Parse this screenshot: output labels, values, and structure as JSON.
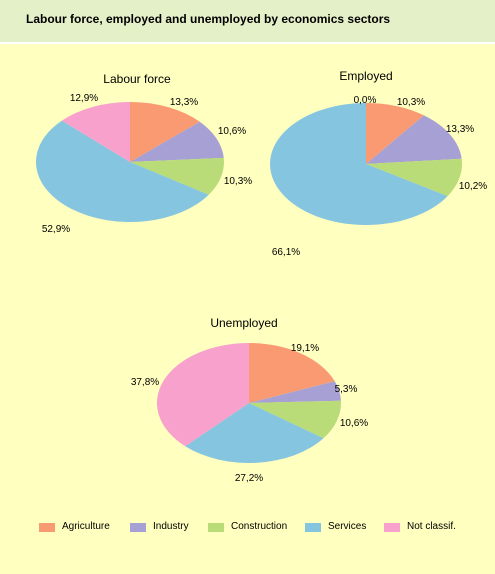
{
  "header": {
    "title": "Labour force, employed and unemployed by economics sectors"
  },
  "colors": {
    "agriculture": "#fa9a72",
    "industry": "#a7a0d4",
    "construction": "#b9dc78",
    "services": "#86c5e0",
    "not_classif": "#f7a1cc"
  },
  "legend": [
    {
      "key": "agriculture",
      "label": "Agriculture"
    },
    {
      "key": "industry",
      "label": "Industry"
    },
    {
      "key": "construction",
      "label": "Construction"
    },
    {
      "key": "services",
      "label": "Services"
    },
    {
      "key": "not_classif",
      "label": "Not classif."
    }
  ],
  "chart_data": [
    {
      "type": "pie",
      "title": "Labour force",
      "slices": [
        {
          "key": "agriculture",
          "value": 13.3,
          "label": "13,3%"
        },
        {
          "key": "industry",
          "value": 10.6,
          "label": "10,6%"
        },
        {
          "key": "construction",
          "value": 10.3,
          "label": "10,3%"
        },
        {
          "key": "services",
          "value": 52.9,
          "label": "52,9%"
        },
        {
          "key": "not_classif",
          "value": 12.9,
          "label": "12,9%"
        }
      ]
    },
    {
      "type": "pie",
      "title": "Employed",
      "slices": [
        {
          "key": "agriculture",
          "value": 10.3,
          "label": "10,3%"
        },
        {
          "key": "industry",
          "value": 13.3,
          "label": "13,3%"
        },
        {
          "key": "construction",
          "value": 10.2,
          "label": "10,2%"
        },
        {
          "key": "services",
          "value": 66.1,
          "label": "66,1%"
        },
        {
          "key": "not_classif",
          "value": 0.0,
          "label": "0,0%"
        }
      ]
    },
    {
      "type": "pie",
      "title": "Unemployed",
      "slices": [
        {
          "key": "agriculture",
          "value": 19.1,
          "label": "19,1%"
        },
        {
          "key": "industry",
          "value": 5.3,
          "label": "5,3%"
        },
        {
          "key": "construction",
          "value": 10.6,
          "label": "10,6%"
        },
        {
          "key": "services",
          "value": 27.2,
          "label": "27,2%"
        },
        {
          "key": "not_classif",
          "value": 37.8,
          "label": "37,8%"
        }
      ]
    }
  ]
}
